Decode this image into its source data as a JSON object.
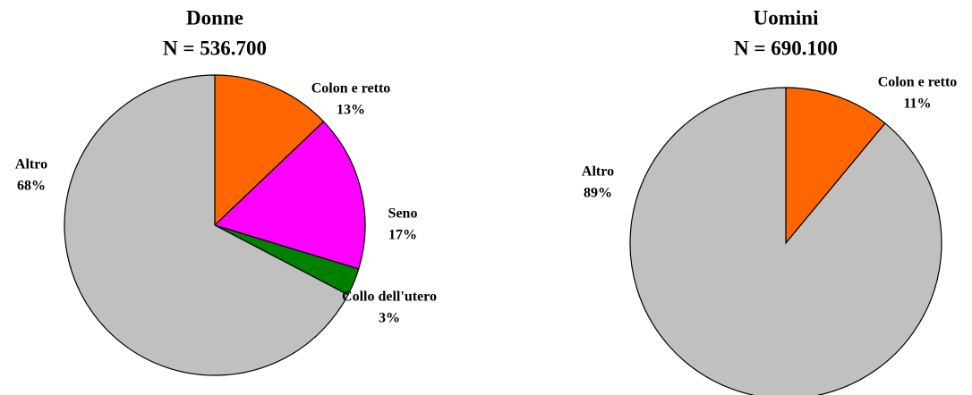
{
  "chart_data": [
    {
      "type": "pie",
      "title": "Donne",
      "subtitle": "N = 536.700",
      "categories": [
        "Colon e retto",
        "Seno",
        "Collo dell'utero",
        "Altro"
      ],
      "values": [
        13,
        17,
        3,
        68
      ],
      "value_labels": [
        "13%",
        "17%",
        "3%",
        "68%"
      ],
      "colors": [
        "#ff6600",
        "#ff00ff",
        "#008000",
        "#c0c0c0"
      ]
    },
    {
      "type": "pie",
      "title": "Uomini",
      "subtitle": "N = 690.100",
      "categories": [
        "Colon e retto",
        "Altro"
      ],
      "values": [
        11,
        89
      ],
      "value_labels": [
        "11%",
        "89%"
      ],
      "colors": [
        "#ff6600",
        "#c0c0c0"
      ]
    }
  ]
}
